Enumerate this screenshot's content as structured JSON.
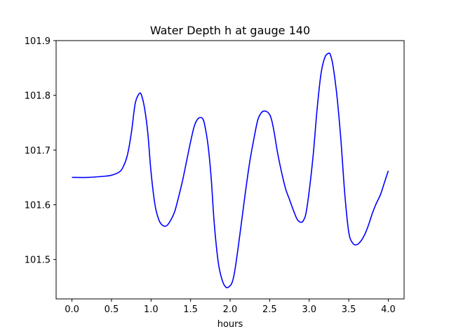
{
  "chart_data": {
    "type": "line",
    "title": "Water Depth h at gauge 140",
    "xlabel": "hours",
    "ylabel": "",
    "xlim": [
      -0.2,
      4.2
    ],
    "ylim": [
      101.428,
      101.9
    ],
    "xticks": [
      0.0,
      0.5,
      1.0,
      1.5,
      2.0,
      2.5,
      3.0,
      3.5,
      4.0
    ],
    "xtick_labels": [
      "0.0",
      "0.5",
      "1.0",
      "1.5",
      "2.0",
      "2.5",
      "3.0",
      "3.5",
      "4.0"
    ],
    "yticks": [
      101.5,
      101.6,
      101.7,
      101.8,
      101.9
    ],
    "ytick_labels": [
      "101.5",
      "101.6",
      "101.7",
      "101.8",
      "101.9"
    ],
    "grid": false,
    "legend": "none",
    "series": [
      {
        "color": "#0000ff",
        "x": [
          0.0,
          0.2,
          0.4,
          0.5,
          0.6,
          0.65,
          0.7,
          0.75,
          0.8,
          0.85,
          0.88,
          0.92,
          0.96,
          1.0,
          1.05,
          1.1,
          1.15,
          1.2,
          1.25,
          1.3,
          1.35,
          1.4,
          1.45,
          1.5,
          1.55,
          1.6,
          1.65,
          1.68,
          1.72,
          1.76,
          1.8,
          1.85,
          1.9,
          1.95,
          2.0,
          2.03,
          2.06,
          2.1,
          2.15,
          2.2,
          2.25,
          2.3,
          2.35,
          2.4,
          2.45,
          2.5,
          2.53,
          2.56,
          2.6,
          2.65,
          2.7,
          2.75,
          2.8,
          2.85,
          2.9,
          2.93,
          2.96,
          3.0,
          3.05,
          3.1,
          3.15,
          3.2,
          3.25,
          3.27,
          3.3,
          3.35,
          3.4,
          3.45,
          3.5,
          3.55,
          3.6,
          3.65,
          3.7,
          3.75,
          3.8,
          3.85,
          3.9,
          3.95,
          4.0
        ],
        "y": [
          101.65,
          101.65,
          101.652,
          101.654,
          101.66,
          101.67,
          101.69,
          101.73,
          101.785,
          101.803,
          101.8,
          101.775,
          101.73,
          101.66,
          101.6,
          101.572,
          101.562,
          101.562,
          101.572,
          101.588,
          101.615,
          101.645,
          101.68,
          101.715,
          101.745,
          101.758,
          101.758,
          101.745,
          101.71,
          101.65,
          101.565,
          101.495,
          101.462,
          101.449,
          101.452,
          101.46,
          101.48,
          101.52,
          101.575,
          101.63,
          101.68,
          101.72,
          101.755,
          101.769,
          101.771,
          101.765,
          101.752,
          101.73,
          101.695,
          101.66,
          101.63,
          101.61,
          101.59,
          101.573,
          101.568,
          101.572,
          101.585,
          101.625,
          101.69,
          101.775,
          101.84,
          101.87,
          101.877,
          101.873,
          101.855,
          101.8,
          101.72,
          101.62,
          101.55,
          101.53,
          101.527,
          101.533,
          101.545,
          101.563,
          101.585,
          101.603,
          101.618,
          101.64,
          101.662
        ]
      }
    ]
  }
}
